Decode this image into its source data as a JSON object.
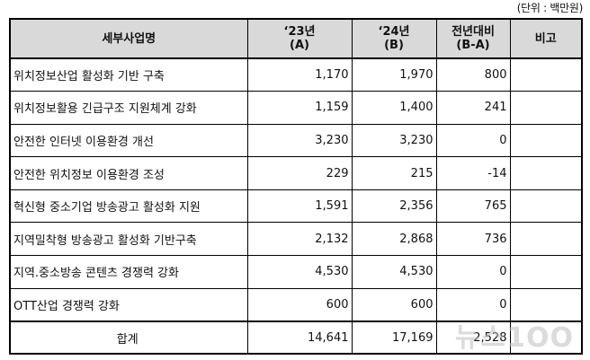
{
  "unit_note": "(단위 : 백만원)",
  "headers": {
    "name": "세부사업명",
    "y23_line1": "‘23년",
    "y23_line2": "(A)",
    "y24_line1": "‘24년",
    "y24_line2": "(B)",
    "diff_line1": "전년대비",
    "diff_line2": "(B-A)",
    "note": "비고"
  },
  "rows": [
    {
      "name": "위치정보산업 활성화 기반 구축",
      "y23": "1,170",
      "y24": "1,970",
      "diff": "800",
      "note": ""
    },
    {
      "name": "위치정보활용 긴급구조 지원체계 강화",
      "y23": "1,159",
      "y24": "1,400",
      "diff": "241",
      "note": ""
    },
    {
      "name": "안전한 인터넷 이용환경 개선",
      "y23": "3,230",
      "y24": "3,230",
      "diff": "0",
      "note": ""
    },
    {
      "name": "안전한 위치정보 이용환경 조성",
      "y23": "229",
      "y24": "215",
      "diff": "-14",
      "note": ""
    },
    {
      "name": "혁신형 중소기업 방송광고 활성화 지원",
      "y23": "1,591",
      "y24": "2,356",
      "diff": "765",
      "note": ""
    },
    {
      "name": "지역밀착형 방송광고 활성화 기반구축",
      "y23": "2,132",
      "y24": "2,868",
      "diff": "736",
      "note": ""
    },
    {
      "name": "지역.중소방송 콘텐츠 경쟁력 강화",
      "y23": "4,530",
      "y24": "4,530",
      "diff": "0",
      "note": ""
    },
    {
      "name": "OTT산업 경쟁력 강화",
      "y23": "600",
      "y24": "600",
      "diff": "0",
      "note": ""
    }
  ],
  "total": {
    "name": "합계",
    "y23": "14,641",
    "y24": "17,169",
    "diff": "2,528",
    "note": ""
  },
  "watermark": "뉴스1OO"
}
